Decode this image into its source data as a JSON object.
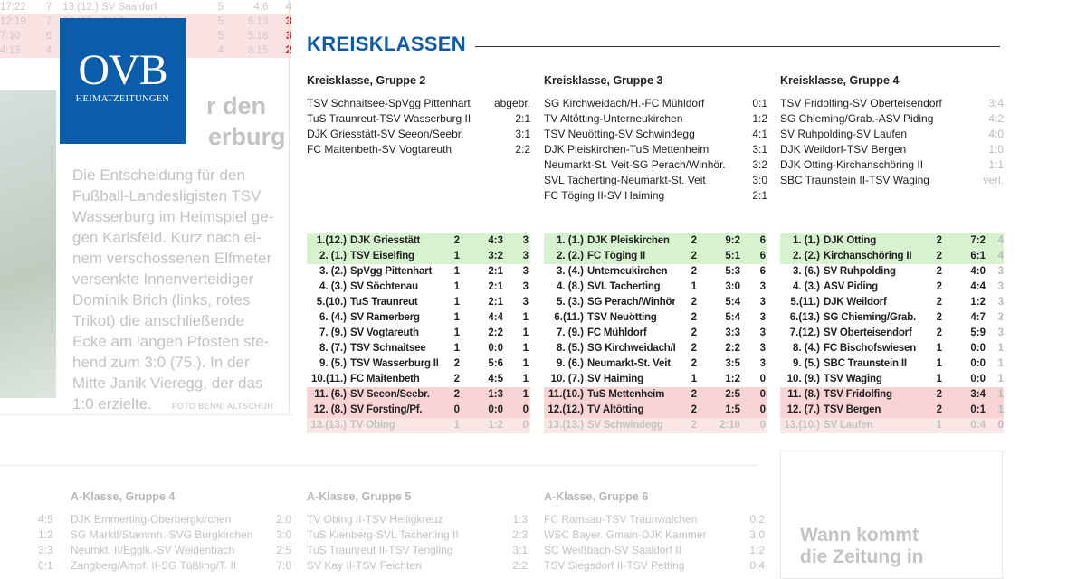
{
  "logo": {
    "main": "OVB",
    "sub": "HEIMATZEITUNGEN"
  },
  "section_title": "KREISKLASSEN",
  "background_top_rows": [
    {
      "time": "17:22",
      "n": "7",
      "team": "13.(12.) SV Saaldorf",
      "g": "5",
      "goals": "4:6",
      "pts": "4",
      "bg": "none"
    },
    {
      "time": "12:19",
      "n": "7",
      "team": "14.(13.) SV Bruckmühl",
      "g": "5",
      "goals": "6:13",
      "pts": "3",
      "bg": "pink"
    },
    {
      "time": "7:10",
      "n": "6",
      "team": "",
      "g": "5",
      "goals": "5:18",
      "pts": "3",
      "bg": "pink"
    },
    {
      "time": "4:13",
      "n": "4",
      "team": "",
      "g": "4",
      "goals": "8:15",
      "pts": "2",
      "bg": "pink"
    }
  ],
  "article": {
    "headline_lines": [
      "r den",
      "erburg"
    ],
    "caption": "Die Entscheidung für den Fußball-Landesligisten TSV Wasserburg im Heimspiel gegen Karlsfeld. Kurz nach einem verschossenen Elfmeter versenkte Innenverteidiger Dominik Brich (links, rotes Trikot) die anschließende Ecke am langen Pfosten stehend zum 3:0 (75.). In der Mitte Janik Vieregg, der das 1:0 erzielte.",
    "caption_lines": [
      "Die Entscheidung für den",
      "Fußball-Landesligisten TSV",
      "Wasserburg im Heimspiel ge-",
      "gen Karlsfeld. Kurz nach ei-",
      "nem verschossenen Elfmeter",
      "versenkte Innenverteidiger",
      "Dominik Brich (links, rotes",
      "Trikot) die anschließende",
      "Ecke am langen Pfosten ste-",
      "hend zum 3:0 (75.). In der",
      "Mitte Janik Vieregg, der das",
      "1:0 erzielte."
    ],
    "foto_credit": "FOTO BENNI ALTSCHUH"
  },
  "groups": [
    {
      "title": "Kreisklasse, Gruppe 2",
      "results": [
        {
          "match": "TSV Schnaitsee-SpVgg Pittenhart",
          "score": "abgebr."
        },
        {
          "match": "TuS Traunreut-TSV Wasserburg II",
          "score": "2:1"
        },
        {
          "match": "DJK Griesstätt-SV Seeon/Seebr.",
          "score": "3:1"
        },
        {
          "match": "FC Maitenbeth-SV Vogtareuth",
          "score": "2:2"
        }
      ],
      "table": [
        {
          "rank": "1.(12.)",
          "team": "DJK Griesstätt",
          "g": "2",
          "goals": "4:3",
          "pts": "3",
          "status": "up"
        },
        {
          "rank": "2. (1.)",
          "team": "TSV Eiselfing",
          "g": "1",
          "goals": "3:2",
          "pts": "3",
          "status": "up"
        },
        {
          "rank": "3. (2.)",
          "team": "SpVgg Pittenhart",
          "g": "1",
          "goals": "2:1",
          "pts": "3",
          "status": ""
        },
        {
          "rank": "4. (3.)",
          "team": "SV Söchtenau",
          "g": "1",
          "goals": "2:1",
          "pts": "3",
          "status": ""
        },
        {
          "rank": "5.(10.)",
          "team": "TuS Traunreut",
          "g": "1",
          "goals": "2:1",
          "pts": "3",
          "status": ""
        },
        {
          "rank": "6. (4.)",
          "team": "SV Ramerberg",
          "g": "1",
          "goals": "4:4",
          "pts": "1",
          "status": ""
        },
        {
          "rank": "7. (9.)",
          "team": "SV Vogtareuth",
          "g": "1",
          "goals": "2:2",
          "pts": "1",
          "status": ""
        },
        {
          "rank": "8. (7.)",
          "team": "TSV Schnaitsee",
          "g": "1",
          "goals": "0:0",
          "pts": "1",
          "status": ""
        },
        {
          "rank": "9. (5.)",
          "team": "TSV Wasserburg II",
          "g": "2",
          "goals": "5:6",
          "pts": "1",
          "status": ""
        },
        {
          "rank": "10.(11.)",
          "team": "FC Maitenbeth",
          "g": "2",
          "goals": "4:5",
          "pts": "1",
          "status": ""
        },
        {
          "rank": "11. (6.)",
          "team": "SV Seeon/Seebr.",
          "g": "2",
          "goals": "1:3",
          "pts": "1",
          "status": "down"
        },
        {
          "rank": "12. (8.)",
          "team": "SV Forsting/Pf.",
          "g": "0",
          "goals": "0:0",
          "pts": "0",
          "status": "down"
        },
        {
          "rank": "13.(13.)",
          "team": "TV Obing",
          "g": "1",
          "goals": "1:2",
          "pts": "0",
          "status": "faint"
        }
      ]
    },
    {
      "title": "Kreisklasse, Gruppe 3",
      "results": [
        {
          "match": "SG Kirchweidach/H.-FC Mühldorf",
          "score": "0:1"
        },
        {
          "match": "TV Altötting-Unterneukirchen",
          "score": "1:2"
        },
        {
          "match": "TSV Neuötting-SV Schwindegg",
          "score": "4:1"
        },
        {
          "match": "DJK Pleiskirchen-TuS Mettenheim",
          "score": "3:1"
        },
        {
          "match": "Neumarkt-St. Veit-SG Perach/Winhör.",
          "score": "3:2"
        },
        {
          "match": "SVL Tacherting-Neumarkt-St. Veit",
          "score": "3:0"
        },
        {
          "match": "FC Töging II-SV Haiming",
          "score": "2:1"
        }
      ],
      "table": [
        {
          "rank": "1. (1.)",
          "team": "DJK Pleiskirchen",
          "g": "2",
          "goals": "9:2",
          "pts": "6",
          "status": "up"
        },
        {
          "rank": "2. (2.)",
          "team": "FC Töging II",
          "g": "2",
          "goals": "5:1",
          "pts": "6",
          "status": "up"
        },
        {
          "rank": "3. (4.)",
          "team": "Unterneukirchen",
          "g": "2",
          "goals": "5:3",
          "pts": "6",
          "status": ""
        },
        {
          "rank": "4. (8.)",
          "team": "SVL Tacherting",
          "g": "1",
          "goals": "3:0",
          "pts": "3",
          "status": ""
        },
        {
          "rank": "5. (3.)",
          "team": "SG Perach/Winhör.",
          "g": "2",
          "goals": "5:4",
          "pts": "3",
          "status": ""
        },
        {
          "rank": "6.(11.)",
          "team": "TSV Neuötting",
          "g": "2",
          "goals": "5:4",
          "pts": "3",
          "status": ""
        },
        {
          "rank": "7. (9.)",
          "team": "FC Mühldorf",
          "g": "2",
          "goals": "3:3",
          "pts": "3",
          "status": ""
        },
        {
          "rank": "8. (5.)",
          "team": "SG Kirchweidach/H.",
          "g": "2",
          "goals": "2:2",
          "pts": "3",
          "status": ""
        },
        {
          "rank": "9. (6.)",
          "team": "Neumarkt-St. Veit",
          "g": "2",
          "goals": "3:5",
          "pts": "3",
          "status": ""
        },
        {
          "rank": "10. (7.)",
          "team": "SV Haiming",
          "g": "1",
          "goals": "1:2",
          "pts": "0",
          "status": ""
        },
        {
          "rank": "11.(10.)",
          "team": "TuS Mettenheim",
          "g": "2",
          "goals": "2:5",
          "pts": "0",
          "status": "down"
        },
        {
          "rank": "12.(12.)",
          "team": "TV Altötting",
          "g": "2",
          "goals": "1:5",
          "pts": "0",
          "status": "down"
        },
        {
          "rank": "13.(13.)",
          "team": "SV Schwindegg",
          "g": "2",
          "goals": "2:10",
          "pts": "0",
          "status": "faint"
        }
      ]
    },
    {
      "title": "Kreisklasse, Gruppe 4",
      "results": [
        {
          "match": "TSV Fridolfing-SV Oberteisendorf",
          "score": "3:4",
          "dim": true
        },
        {
          "match": "SG Chieming/Grab.-ASV Piding",
          "score": "4:2",
          "dim": true
        },
        {
          "match": "SV Ruhpolding-SV Laufen",
          "score": "4:0",
          "dim": true
        },
        {
          "match": "DJK Weildorf-TSV Bergen",
          "score": "1:0",
          "dim": true
        },
        {
          "match": "DJK Otting-Kirchanschöring II",
          "score": "1:1",
          "dim": true
        },
        {
          "match": "SBC Traunstein II-TSV Waging",
          "score": "verl.",
          "dim": true
        }
      ],
      "table": [
        {
          "rank": "1. (1.)",
          "team": "DJK Otting",
          "g": "2",
          "goals": "7:2",
          "pts": "4",
          "status": "up",
          "cut": true
        },
        {
          "rank": "2. (2.)",
          "team": "Kirchanschöring II",
          "g": "2",
          "goals": "6:1",
          "pts": "4",
          "status": "up",
          "cut": true
        },
        {
          "rank": "3. (6.)",
          "team": "SV Ruhpolding",
          "g": "2",
          "goals": "4:0",
          "pts": "3",
          "status": "",
          "cut": true
        },
        {
          "rank": "4. (3.)",
          "team": "ASV Piding",
          "g": "2",
          "goals": "4:4",
          "pts": "3",
          "status": "",
          "cut": true
        },
        {
          "rank": "5.(11.)",
          "team": "DJK Weildorf",
          "g": "2",
          "goals": "1:2",
          "pts": "3",
          "status": "",
          "cut": true
        },
        {
          "rank": "6.(13.)",
          "team": "SG Chieming/Grab.",
          "g": "2",
          "goals": "4:7",
          "pts": "3",
          "status": "",
          "cut": true
        },
        {
          "rank": "7.(12.)",
          "team": "SV Oberteisendorf",
          "g": "2",
          "goals": "5:9",
          "pts": "3",
          "status": "",
          "cut": true
        },
        {
          "rank": "8. (4.)",
          "team": "FC Bischofswiesen",
          "g": "1",
          "goals": "0:0",
          "pts": "1",
          "status": "",
          "cut": true
        },
        {
          "rank": "9. (5.)",
          "team": "SBC Traunstein II",
          "g": "1",
          "goals": "0:0",
          "pts": "1",
          "status": "",
          "cut": true
        },
        {
          "rank": "10. (9.)",
          "team": "TSV Waging",
          "g": "1",
          "goals": "0:0",
          "pts": "1",
          "status": "",
          "cut": true
        },
        {
          "rank": "11. (8.)",
          "team": "TSV Fridolfing",
          "g": "2",
          "goals": "3:4",
          "pts": "1",
          "status": "down",
          "cut": true
        },
        {
          "rank": "12. (7.)",
          "team": "TSV Bergen",
          "g": "2",
          "goals": "0:1",
          "pts": "1",
          "status": "down",
          "cut": true
        },
        {
          "rank": "13.(10.)",
          "team": "SV Laufen",
          "g": "1",
          "goals": "0:4",
          "pts": "0",
          "status": "faint",
          "cut": true
        }
      ]
    }
  ],
  "a_klasse": [
    {
      "title": "A-Klasse, Gruppe 4",
      "left_scores": [
        "4:5",
        "1:2",
        "3:3",
        "0:1"
      ],
      "results": [
        {
          "match": "DJK Emmerting-Oberbergkirchen",
          "score": "2:0"
        },
        {
          "match": "SG Marktl/Stammh.-SVG Burgkirchen",
          "score": "3:0"
        },
        {
          "match": "Neumkt. II/Egglk.-SV Weidenbach",
          "score": "2:5"
        },
        {
          "match": "Zangberg/Ampf. II-SG Tüßling/T. II",
          "score": "7:0"
        }
      ]
    },
    {
      "title": "A-Klasse, Gruppe 5",
      "results": [
        {
          "match": "TV Obing II-TSV Heiligkreuz",
          "score": "1:3"
        },
        {
          "match": "TuS Kienberg-SVL Tacherting II",
          "score": "2:3"
        },
        {
          "match": "TuS Traunreut II-TSV Tengling",
          "score": "3:1"
        },
        {
          "match": "SV Kay II-TSV Feichten",
          "score": "2:2"
        }
      ]
    },
    {
      "title": "A-Klasse, Gruppe 6",
      "results": [
        {
          "match": "FC Ramsau-TSV Traunwalchen",
          "score": "0:2"
        },
        {
          "match": "WSC Bayer. Gmain-DJK Kammer",
          "score": "3:0"
        },
        {
          "match": "SC Weißbach-SV Saaldorf II",
          "score": "1:2"
        },
        {
          "match": "TSV Siegsdorf II-TSV Petting",
          "score": "0:4"
        }
      ]
    }
  ],
  "ad_text_lines": [
    "Wann kommt",
    "die Zeitung in"
  ],
  "colors": {
    "brand_blue": "#0b5cab",
    "title_blue": "#0e5ba7",
    "promotion_green": "#d6f2cf",
    "relegation_red": "#f8d4d4",
    "score_red": "#c62828"
  }
}
